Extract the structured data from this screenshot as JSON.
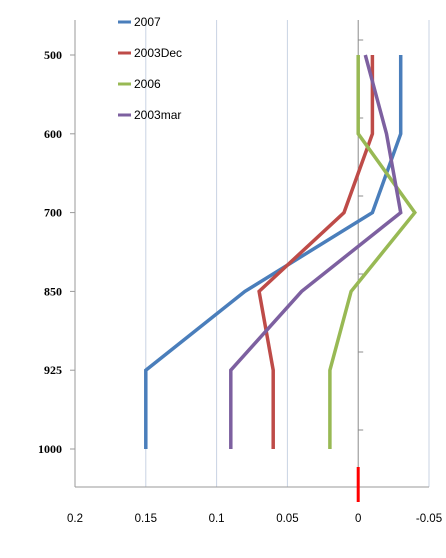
{
  "chart_data": {
    "type": "line",
    "title": "",
    "xlabel": "",
    "ylabel": "",
    "x_axis": {
      "ticks": [
        0.2,
        0.15,
        0.1,
        0.05,
        0,
        -0.05
      ],
      "tick_labels": [
        "0.2",
        "0.15",
        "0.1",
        "0.05",
        "0",
        "-0.05"
      ],
      "range": [
        0.2,
        -0.05
      ],
      "reversed": true
    },
    "y_axis": {
      "categories": [
        "500",
        "600",
        "700",
        "850",
        "925",
        "1000"
      ]
    },
    "grid": "vertical",
    "legend_position": "top-left",
    "marker": {
      "x": 0
    },
    "series": [
      {
        "name": "2007",
        "color": "#4a7ebb",
        "values": [
          -0.03,
          -0.03,
          -0.01,
          0.08,
          0.15,
          0.15
        ]
      },
      {
        "name": "2003Dec",
        "color": "#be4b48",
        "values": [
          -0.01,
          -0.01,
          0.01,
          0.07,
          0.06,
          0.06
        ]
      },
      {
        "name": "2006",
        "color": "#98b954",
        "values": [
          0.0,
          0.0,
          -0.04,
          0.005,
          0.02,
          0.02
        ]
      },
      {
        "name": "2003mar",
        "color": "#7d60a0",
        "values": [
          -0.005,
          -0.02,
          -0.03,
          0.04,
          0.09,
          0.09
        ]
      }
    ]
  }
}
